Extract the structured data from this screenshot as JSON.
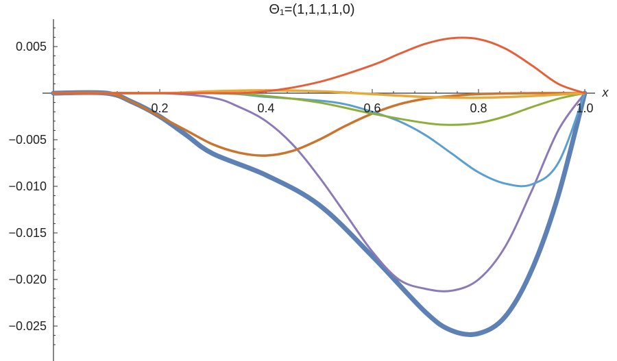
{
  "chart_data": {
    "type": "line",
    "title": "Θ₁=(1,1,1,1,0)",
    "xlabel": "x",
    "ylabel": "",
    "xlim": [
      0,
      1.02
    ],
    "ylim": [
      -0.0275,
      0.0078
    ],
    "x_ticks": [
      0.2,
      0.4,
      0.6,
      0.8,
      1.0
    ],
    "x_tick_labels": [
      "0.2",
      "0.4",
      "0.6",
      "0.8",
      "1.0"
    ],
    "y_ticks": [
      0.005,
      -0.005,
      -0.01,
      -0.015,
      -0.02,
      -0.025
    ],
    "y_tick_labels": [
      "0.005",
      "−0.005",
      "−0.010",
      "−0.015",
      "−0.020",
      "−0.025"
    ],
    "grid": false,
    "legend": "none",
    "series": [
      {
        "color": "#5e81b5",
        "width": 7,
        "x": [
          0,
          0.1,
          0.15,
          0.2,
          0.25,
          0.3,
          0.4,
          0.5,
          0.6,
          0.7,
          0.75,
          0.8,
          0.85,
          0.9,
          0.95,
          1.0
        ],
        "y": [
          0,
          0,
          -0.001,
          -0.0025,
          -0.0045,
          -0.0065,
          -0.0088,
          -0.012,
          -0.0175,
          -0.0235,
          -0.0255,
          -0.0258,
          -0.024,
          -0.019,
          -0.011,
          0
        ]
      },
      {
        "color": "#8c7ab8",
        "width": 3,
        "x": [
          0,
          0.2,
          0.3,
          0.35,
          0.4,
          0.45,
          0.5,
          0.55,
          0.6,
          0.65,
          0.7,
          0.75,
          0.8,
          0.85,
          0.9,
          0.95,
          1.0
        ],
        "y": [
          0,
          0,
          -0.0005,
          -0.0015,
          -0.003,
          -0.0055,
          -0.009,
          -0.013,
          -0.017,
          -0.02,
          -0.021,
          -0.0212,
          -0.02,
          -0.0165,
          -0.0105,
          -0.004,
          0
        ]
      },
      {
        "color": "#c9752f",
        "width": 3.5,
        "x": [
          0,
          0.1,
          0.15,
          0.2,
          0.25,
          0.3,
          0.35,
          0.4,
          0.45,
          0.5,
          0.55,
          0.6,
          0.65,
          0.7,
          0.75,
          0.8,
          0.9,
          1.0
        ],
        "y": [
          0,
          0,
          -0.001,
          -0.0025,
          -0.004,
          -0.0055,
          -0.0064,
          -0.0067,
          -0.0062,
          -0.005,
          -0.0035,
          -0.0022,
          -0.0012,
          -0.0006,
          -0.0003,
          -0.0001,
          0,
          0
        ]
      },
      {
        "color": "#5aa0cf",
        "width": 3,
        "x": [
          0,
          0.3,
          0.4,
          0.5,
          0.55,
          0.6,
          0.65,
          0.7,
          0.75,
          0.8,
          0.85,
          0.9,
          0.95,
          1.0
        ],
        "y": [
          0,
          0,
          -0.0004,
          -0.0008,
          -0.0012,
          -0.002,
          -0.003,
          -0.0045,
          -0.0065,
          -0.0085,
          -0.0097,
          -0.0098,
          -0.0075,
          0
        ]
      },
      {
        "color": "#8eae3a",
        "width": 3,
        "x": [
          0,
          0.3,
          0.4,
          0.5,
          0.6,
          0.7,
          0.75,
          0.8,
          0.85,
          0.9,
          0.95,
          1.0
        ],
        "y": [
          0,
          0,
          -0.0003,
          -0.001,
          -0.0022,
          -0.0032,
          -0.0034,
          -0.0032,
          -0.0025,
          -0.0015,
          -0.0006,
          0
        ]
      },
      {
        "color": "#e8a83c",
        "width": 3.5,
        "x": [
          0,
          0.2,
          0.3,
          0.4,
          0.5,
          0.6,
          0.7,
          0.8,
          0.9,
          1.0
        ],
        "y": [
          0,
          0,
          0.0002,
          0.0003,
          0.0002,
          -0.0001,
          -0.0004,
          -0.0005,
          -0.0003,
          0
        ]
      },
      {
        "color": "#e5603a",
        "width": 3,
        "x": [
          0,
          0.3,
          0.4,
          0.5,
          0.6,
          0.65,
          0.7,
          0.75,
          0.8,
          0.85,
          0.9,
          0.95,
          1.0
        ],
        "y": [
          0,
          0,
          0.0002,
          0.0012,
          0.003,
          0.0042,
          0.0053,
          0.0059,
          0.0058,
          0.0048,
          0.003,
          0.001,
          0
        ]
      }
    ]
  }
}
